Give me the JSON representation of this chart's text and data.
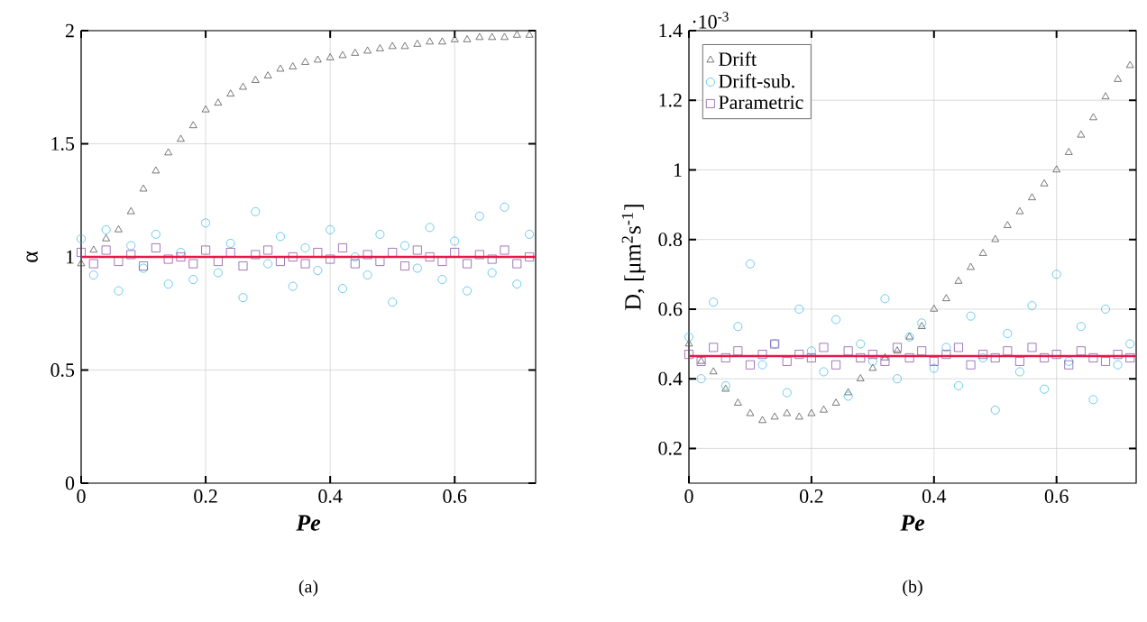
{
  "chart_data": [
    {
      "type": "scatter",
      "xlabel": "Pe",
      "ylabel": "α",
      "xlim": [
        0,
        0.73
      ],
      "ylim": [
        0,
        2
      ],
      "xticks": [
        0,
        0.2,
        0.4,
        0.6
      ],
      "yticks": [
        0,
        0.5,
        1,
        1.5,
        2
      ],
      "grid": true,
      "legend": false,
      "x": [
        0,
        0.02,
        0.04,
        0.06,
        0.08,
        0.1,
        0.12,
        0.14,
        0.16,
        0.18,
        0.2,
        0.22,
        0.24,
        0.26,
        0.28,
        0.3,
        0.32,
        0.34,
        0.36,
        0.38,
        0.4,
        0.42,
        0.44,
        0.46,
        0.48,
        0.5,
        0.52,
        0.54,
        0.56,
        0.58,
        0.6,
        0.62,
        0.64,
        0.66,
        0.68,
        0.7,
        0.72
      ],
      "series": [
        {
          "color": "#404040",
          "marker": "triangle",
          "values": [
            0.97,
            1.03,
            1.08,
            1.12,
            1.2,
            1.3,
            1.38,
            1.46,
            1.52,
            1.58,
            1.65,
            1.68,
            1.72,
            1.75,
            1.78,
            1.8,
            1.83,
            1.84,
            1.86,
            1.87,
            1.88,
            1.89,
            1.9,
            1.91,
            1.92,
            1.93,
            1.93,
            1.94,
            1.95,
            1.95,
            1.96,
            1.96,
            1.97,
            1.97,
            1.97,
            1.98,
            1.98
          ]
        },
        {
          "color": "#33b5e5",
          "marker": "circle",
          "values": [
            1.08,
            0.92,
            1.12,
            0.85,
            1.05,
            0.95,
            1.1,
            0.88,
            1.02,
            0.9,
            1.15,
            0.93,
            1.06,
            0.82,
            1.2,
            0.97,
            1.09,
            0.87,
            1.04,
            0.94,
            1.12,
            0.86,
            1.0,
            0.92,
            1.1,
            0.8,
            1.05,
            0.95,
            1.13,
            0.9,
            1.07,
            0.85,
            1.18,
            0.93,
            1.22,
            0.88,
            1.1
          ]
        },
        {
          "color": "#7b3f9e",
          "marker": "square",
          "values": [
            1.02,
            0.97,
            1.03,
            0.98,
            1.01,
            0.96,
            1.04,
            0.99,
            1.0,
            0.97,
            1.03,
            0.98,
            1.02,
            0.96,
            1.01,
            1.03,
            0.98,
            1.0,
            0.97,
            1.02,
            0.99,
            1.04,
            0.97,
            1.01,
            0.98,
            1.02,
            0.96,
            1.03,
            1.0,
            0.98,
            1.02,
            0.97,
            1.01,
            0.99,
            1.03,
            0.97,
            1.0
          ]
        }
      ],
      "ref_lines": [
        {
          "axis": "y",
          "value": 1,
          "color": "#e8174a"
        }
      ],
      "annotations": [
        "(a)"
      ]
    },
    {
      "type": "scatter",
      "xlabel": "Pe",
      "ylabel": "D, [μm$^{2}$s$^{-1}$]",
      "xlim": [
        0,
        0.73
      ],
      "ylim": [
        0.1,
        1.4
      ],
      "xticks": [
        0,
        0.2,
        0.4,
        0.6
      ],
      "yticks": [
        0.2,
        0.4,
        0.6,
        0.8,
        1,
        1.2,
        1.4
      ],
      "grid": true,
      "legend": "top left",
      "x": [
        0,
        0.02,
        0.04,
        0.06,
        0.08,
        0.1,
        0.12,
        0.14,
        0.16,
        0.18,
        0.2,
        0.22,
        0.24,
        0.26,
        0.28,
        0.3,
        0.32,
        0.34,
        0.36,
        0.38,
        0.4,
        0.42,
        0.44,
        0.46,
        0.48,
        0.5,
        0.52,
        0.54,
        0.56,
        0.58,
        0.6,
        0.62,
        0.64,
        0.66,
        0.68,
        0.7,
        0.72
      ],
      "series": [
        {
          "name": "Drift",
          "color": "#404040",
          "marker": "triangle",
          "values": [
            0.5,
            0.45,
            0.42,
            0.37,
            0.33,
            0.3,
            0.28,
            0.29,
            0.3,
            0.29,
            0.3,
            0.31,
            0.33,
            0.36,
            0.4,
            0.43,
            0.46,
            0.48,
            0.52,
            0.55,
            0.6,
            0.63,
            0.68,
            0.72,
            0.76,
            0.8,
            0.84,
            0.88,
            0.92,
            0.96,
            1.0,
            1.05,
            1.1,
            1.15,
            1.21,
            1.26,
            1.3
          ]
        },
        {
          "name": "Drift-sub.",
          "color": "#33b5e5",
          "marker": "circle",
          "values": [
            0.52,
            0.4,
            0.62,
            0.38,
            0.55,
            0.73,
            0.44,
            0.5,
            0.36,
            0.6,
            0.48,
            0.42,
            0.57,
            0.35,
            0.5,
            0.45,
            0.63,
            0.4,
            0.52,
            0.56,
            0.43,
            0.49,
            0.38,
            0.58,
            0.46,
            0.31,
            0.53,
            0.42,
            0.61,
            0.37,
            0.7,
            0.45,
            0.55,
            0.34,
            0.6,
            0.44,
            0.5
          ]
        },
        {
          "name": "Parametric",
          "color": "#7b3f9e",
          "marker": "square",
          "values": [
            0.47,
            0.45,
            0.49,
            0.46,
            0.48,
            0.44,
            0.47,
            0.5,
            0.45,
            0.47,
            0.46,
            0.49,
            0.44,
            0.48,
            0.46,
            0.47,
            0.45,
            0.49,
            0.46,
            0.48,
            0.45,
            0.47,
            0.49,
            0.44,
            0.47,
            0.46,
            0.48,
            0.45,
            0.49,
            0.46,
            0.47,
            0.44,
            0.48,
            0.46,
            0.45,
            0.47,
            0.46
          ]
        }
      ],
      "ref_lines": [
        {
          "axis": "y",
          "value": 0.465,
          "color": "#e8174a"
        }
      ],
      "annotations": [
        "·10$^{-3}$",
        "(b)"
      ]
    }
  ]
}
